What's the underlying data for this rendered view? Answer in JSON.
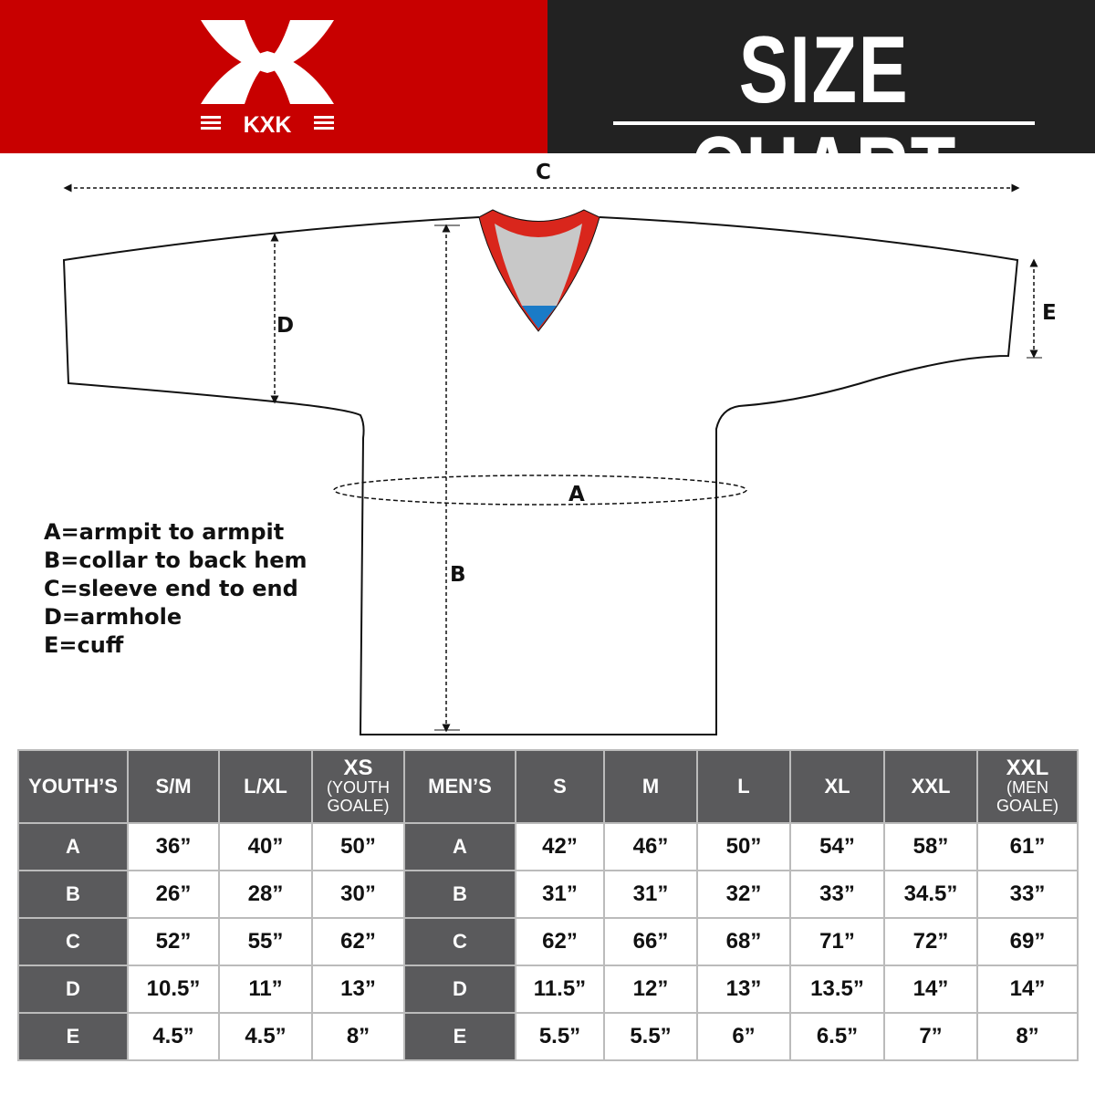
{
  "brand": {
    "logo_text": "KXK",
    "color": "#c80000"
  },
  "header": {
    "title": "SIZE CHART"
  },
  "diagram": {
    "labels": {
      "a": "A",
      "b": "B",
      "c": "C",
      "d": "D",
      "e": "E"
    },
    "legend": [
      "A=armpit to armpit",
      "B=collar to back hem",
      "C=sleeve end to end",
      "D=armhole",
      "E=cuff"
    ]
  },
  "table": {
    "youth_header": {
      "label": "YOUTH’S",
      "sizes": [
        {
          "main": "S/M"
        },
        {
          "main": "L/XL"
        },
        {
          "main": "XS",
          "sub1": "(YOUTH",
          "sub2": "GOALE)"
        }
      ]
    },
    "men_header": {
      "label": "MEN’S",
      "sizes": [
        {
          "main": "S"
        },
        {
          "main": "M"
        },
        {
          "main": "L"
        },
        {
          "main": "XL"
        },
        {
          "main": "XXL"
        },
        {
          "main": "XXL",
          "sub1": "(MEN",
          "sub2": "GOALE)"
        }
      ]
    },
    "rows": [
      {
        "key": "A",
        "youth": [
          "36”",
          "40”",
          "50”"
        ],
        "men": [
          "42”",
          "46”",
          "50”",
          "54”",
          "58”",
          "61”"
        ]
      },
      {
        "key": "B",
        "youth": [
          "26”",
          "28”",
          "30”"
        ],
        "men": [
          "31”",
          "31”",
          "32”",
          "33”",
          "34.5”",
          "33”"
        ]
      },
      {
        "key": "C",
        "youth": [
          "52”",
          "55”",
          "62”"
        ],
        "men": [
          "62”",
          "66”",
          "68”",
          "71”",
          "72”",
          "69”"
        ]
      },
      {
        "key": "D",
        "youth": [
          "10.5”",
          "11”",
          "13”"
        ],
        "men": [
          "11.5”",
          "12”",
          "13”",
          "13.5”",
          "14”",
          "14”"
        ]
      },
      {
        "key": "E",
        "youth": [
          "4.5”",
          "4.5”",
          "8”"
        ],
        "men": [
          "5.5”",
          "5.5”",
          "6”",
          "6.5”",
          "7”",
          "8”"
        ]
      }
    ]
  }
}
